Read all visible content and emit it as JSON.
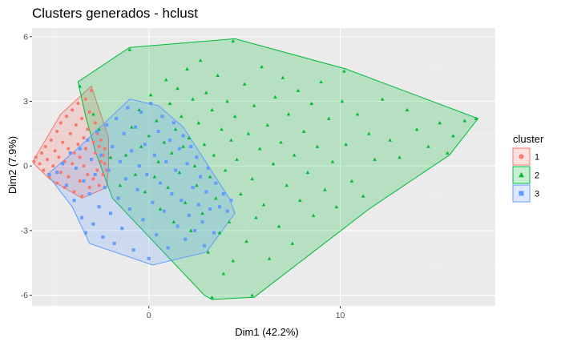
{
  "chart_data": {
    "type": "scatter",
    "title": "Clusters generados - hclust",
    "xlabel": "Dim1 (42.2%)",
    "ylabel": "Dim2 (7.9%)",
    "xlim": [
      -6.1,
      18.1
    ],
    "ylim": [
      -6.5,
      6.4
    ],
    "x_ticks": [
      0,
      10
    ],
    "y_ticks": [
      -6,
      -3,
      0,
      3,
      6
    ],
    "grid": true,
    "legend": {
      "title": "cluster",
      "position": "right",
      "entries": [
        "1",
        "2",
        "3"
      ]
    },
    "colors": {
      "1": "#f8766d",
      "2": "#00ba38",
      "3": "#619cff"
    },
    "series": [
      {
        "name": "1",
        "marker": "circle",
        "hull": [
          [
            -6.0,
            0.3
          ],
          [
            -4.6,
            2.4
          ],
          [
            -3.5,
            3.3
          ],
          [
            -3.0,
            3.7
          ],
          [
            -2.1,
            1.3
          ],
          [
            -2.1,
            0.0
          ],
          [
            -2.2,
            -1.0
          ],
          [
            -3.5,
            -1.5
          ],
          [
            -5.2,
            -0.6
          ],
          [
            -6.0,
            0.1
          ]
        ],
        "points": [
          [
            -6.0,
            0.2
          ],
          [
            -5.9,
            0.4
          ],
          [
            -5.7,
            0.1
          ],
          [
            -5.6,
            0.6
          ],
          [
            -5.5,
            -0.2
          ],
          [
            -5.4,
            0.9
          ],
          [
            -5.3,
            0.3
          ],
          [
            -5.2,
            -0.5
          ],
          [
            -5.1,
            1.2
          ],
          [
            -5.0,
            0.0
          ],
          [
            -4.9,
            0.7
          ],
          [
            -4.8,
            1.6
          ],
          [
            -4.8,
            -0.8
          ],
          [
            -4.7,
            0.4
          ],
          [
            -4.6,
            2.0
          ],
          [
            -4.6,
            -0.3
          ],
          [
            -4.5,
            1.1
          ],
          [
            -4.4,
            0.2
          ],
          [
            -4.4,
            -1.0
          ],
          [
            -4.3,
            2.3
          ],
          [
            -4.2,
            0.8
          ],
          [
            -4.2,
            -0.5
          ],
          [
            -4.1,
            1.5
          ],
          [
            -4.0,
            0.1
          ],
          [
            -4.0,
            2.6
          ],
          [
            -3.9,
            -1.2
          ],
          [
            -3.9,
            0.6
          ],
          [
            -3.8,
            1.9
          ],
          [
            -3.8,
            -0.1
          ],
          [
            -3.7,
            2.9
          ],
          [
            -3.7,
            1.0
          ],
          [
            -3.6,
            -0.7
          ],
          [
            -3.6,
            0.4
          ],
          [
            -3.5,
            2.2
          ],
          [
            -3.5,
            -1.4
          ],
          [
            -3.4,
            1.3
          ],
          [
            -3.4,
            0.0
          ],
          [
            -3.3,
            3.1
          ],
          [
            -3.3,
            0.8
          ],
          [
            -3.2,
            -0.4
          ],
          [
            -3.2,
            1.7
          ],
          [
            -3.1,
            2.5
          ],
          [
            -3.1,
            -1.0
          ],
          [
            -3.0,
            0.3
          ],
          [
            -3.0,
            3.5
          ],
          [
            -2.9,
            1.1
          ],
          [
            -2.9,
            -0.6
          ],
          [
            -2.8,
            2.0
          ],
          [
            -2.8,
            0.6
          ],
          [
            -2.7,
            -0.2
          ],
          [
            -2.7,
            1.5
          ],
          [
            -2.6,
            0.9
          ],
          [
            -2.6,
            -0.9
          ],
          [
            -2.5,
            0.2
          ],
          [
            -2.5,
            1.2
          ],
          [
            -2.4,
            0.5
          ],
          [
            -2.4,
            -0.4
          ],
          [
            -2.3,
            0.8
          ],
          [
            -2.3,
            0.1
          ],
          [
            -2.2,
            -0.2
          ]
        ]
      },
      {
        "name": "2",
        "marker": "triangle",
        "hull": [
          [
            -3.7,
            3.9
          ],
          [
            -1.0,
            5.5
          ],
          [
            4.5,
            5.9
          ],
          [
            10.3,
            4.5
          ],
          [
            17.2,
            2.2
          ],
          [
            15.7,
            0.5
          ],
          [
            11.5,
            -2.0
          ],
          [
            5.5,
            -6.1
          ],
          [
            3.3,
            -6.2
          ],
          [
            2.9,
            -6.0
          ],
          [
            -1.9,
            -1.5
          ],
          [
            -2.8,
            0.7
          ],
          [
            -3.3,
            2.3
          ],
          [
            -3.7,
            3.9
          ]
        ],
        "points": [
          [
            -3.6,
            3.7
          ],
          [
            -1.0,
            5.4
          ],
          [
            4.4,
            5.8
          ],
          [
            10.2,
            4.4
          ],
          [
            17.1,
            2.2
          ],
          [
            15.6,
            0.6
          ],
          [
            5.4,
            -6.0
          ],
          [
            3.3,
            -6.1
          ],
          [
            -1.5,
            -0.9
          ],
          [
            -1.2,
            0.5
          ],
          [
            -0.9,
            1.8
          ],
          [
            -0.7,
            -0.4
          ],
          [
            -0.5,
            2.6
          ],
          [
            -0.4,
            0.9
          ],
          [
            -0.2,
            -1.2
          ],
          [
            0.0,
            1.4
          ],
          [
            0.1,
            3.3
          ],
          [
            0.3,
            -0.5
          ],
          [
            0.4,
            2.1
          ],
          [
            0.5,
            0.2
          ],
          [
            0.6,
            -2.0
          ],
          [
            0.8,
            1.1
          ],
          [
            0.9,
            4.0
          ],
          [
            1.0,
            -1.0
          ],
          [
            1.1,
            2.9
          ],
          [
            1.2,
            0.6
          ],
          [
            1.3,
            -2.6
          ],
          [
            1.4,
            1.7
          ],
          [
            1.5,
            3.6
          ],
          [
            1.6,
            -0.3
          ],
          [
            1.7,
            2.3
          ],
          [
            1.8,
            0.9
          ],
          [
            1.9,
            -1.7
          ],
          [
            2.0,
            4.5
          ],
          [
            2.1,
            1.3
          ],
          [
            2.2,
            -3.0
          ],
          [
            2.3,
            3.1
          ],
          [
            2.4,
            0.0
          ],
          [
            2.5,
            -0.9
          ],
          [
            2.6,
            2.0
          ],
          [
            2.7,
            4.9
          ],
          [
            2.8,
            -2.2
          ],
          [
            2.9,
            1.0
          ],
          [
            3.0,
            3.4
          ],
          [
            3.1,
            -4.0
          ],
          [
            3.2,
            -0.5
          ],
          [
            3.3,
            2.6
          ],
          [
            3.4,
            0.5
          ],
          [
            3.5,
            -1.5
          ],
          [
            3.6,
            4.2
          ],
          [
            3.7,
            -3.1
          ],
          [
            3.8,
            1.7
          ],
          [
            3.9,
            -5.0
          ],
          [
            4.0,
            -0.2
          ],
          [
            4.1,
            3.0
          ],
          [
            4.2,
            -2.6
          ],
          [
            4.3,
            1.2
          ],
          [
            4.4,
            -4.4
          ],
          [
            4.5,
            2.3
          ],
          [
            4.6,
            0.3
          ],
          [
            4.8,
            -1.3
          ],
          [
            5.0,
            3.8
          ],
          [
            5.1,
            -3.5
          ],
          [
            5.2,
            1.5
          ],
          [
            5.4,
            -0.6
          ],
          [
            5.5,
            2.8
          ],
          [
            5.6,
            -2.4
          ],
          [
            5.8,
            0.8
          ],
          [
            5.9,
            4.6
          ],
          [
            6.0,
            -1.8
          ],
          [
            6.2,
            1.9
          ],
          [
            6.3,
            -4.3
          ],
          [
            6.5,
            0.1
          ],
          [
            6.6,
            3.2
          ],
          [
            6.8,
            -2.8
          ],
          [
            6.9,
            1.1
          ],
          [
            7.0,
            4.1
          ],
          [
            7.2,
            -0.9
          ],
          [
            7.3,
            2.4
          ],
          [
            7.5,
            -3.6
          ],
          [
            7.6,
            0.5
          ],
          [
            7.8,
            3.5
          ],
          [
            7.9,
            -1.6
          ],
          [
            8.1,
            1.6
          ],
          [
            8.3,
            -0.3
          ],
          [
            8.5,
            2.9
          ],
          [
            8.6,
            -2.3
          ],
          [
            8.8,
            0.9
          ],
          [
            9.0,
            3.9
          ],
          [
            9.2,
            -1.1
          ],
          [
            9.4,
            2.2
          ],
          [
            9.6,
            0.2
          ],
          [
            9.8,
            -1.9
          ],
          [
            10.1,
            3.0
          ],
          [
            10.3,
            1.0
          ],
          [
            10.6,
            -0.7
          ],
          [
            10.9,
            2.4
          ],
          [
            11.2,
            -1.4
          ],
          [
            11.5,
            1.5
          ],
          [
            11.8,
            0.3
          ],
          [
            12.2,
            3.1
          ],
          [
            12.6,
            1.2
          ],
          [
            13.1,
            0.4
          ],
          [
            13.5,
            2.6
          ],
          [
            14.0,
            1.7
          ],
          [
            14.6,
            0.9
          ],
          [
            15.2,
            2.0
          ],
          [
            15.9,
            1.4
          ],
          [
            16.5,
            2.1
          ],
          [
            -2.9,
            2.4
          ],
          [
            -2.6,
            1.7
          ],
          [
            -2.0,
            0.4
          ]
        ]
      },
      {
        "name": "3",
        "marker": "square",
        "hull": [
          [
            -1.0,
            3.1
          ],
          [
            0.5,
            2.8
          ],
          [
            1.8,
            1.8
          ],
          [
            4.2,
            -1.5
          ],
          [
            4.5,
            -2.2
          ],
          [
            3.0,
            -4.0
          ],
          [
            0.2,
            -4.6
          ],
          [
            -3.1,
            -3.6
          ],
          [
            -4.0,
            -1.9
          ],
          [
            -5.3,
            -0.4
          ],
          [
            -3.6,
            0.9
          ],
          [
            -1.0,
            3.1
          ]
        ],
        "points": [
          [
            -5.2,
            -0.4
          ],
          [
            -4.8,
            -0.3
          ],
          [
            -4.5,
            0.1
          ],
          [
            -4.3,
            -0.9
          ],
          [
            -4.1,
            0.6
          ],
          [
            -3.9,
            -1.6
          ],
          [
            -3.8,
            -0.1
          ],
          [
            -3.6,
            0.8
          ],
          [
            -3.5,
            -2.4
          ],
          [
            -3.4,
            -0.7
          ],
          [
            -3.3,
            -3.1
          ],
          [
            -3.2,
            1.2
          ],
          [
            -3.1,
            -1.3
          ],
          [
            -3.0,
            0.3
          ],
          [
            -2.9,
            -2.7
          ],
          [
            -2.8,
            -0.4
          ],
          [
            -2.7,
            1.6
          ],
          [
            -2.6,
            -1.9
          ],
          [
            -2.5,
            0.5
          ],
          [
            -2.4,
            -3.3
          ],
          [
            -2.3,
            -1.0
          ],
          [
            -2.2,
            1.9
          ],
          [
            -2.1,
            -0.2
          ],
          [
            -2.0,
            -2.2
          ],
          [
            -1.9,
            0.9
          ],
          [
            -1.8,
            -3.6
          ],
          [
            -1.7,
            2.2
          ],
          [
            -1.6,
            -1.5
          ],
          [
            -1.5,
            0.2
          ],
          [
            -1.4,
            -2.9
          ],
          [
            -1.3,
            1.5
          ],
          [
            -1.2,
            -0.6
          ],
          [
            -1.1,
            2.7
          ],
          [
            -1.0,
            -2.0
          ],
          [
            -0.9,
            0.7
          ],
          [
            -0.8,
            -3.9
          ],
          [
            -0.7,
            1.8
          ],
          [
            -0.6,
            -1.1
          ],
          [
            -0.5,
            0.0
          ],
          [
            -0.4,
            2.5
          ],
          [
            -0.3,
            -2.5
          ],
          [
            -0.2,
            1.0
          ],
          [
            -0.1,
            -0.4
          ],
          [
            0.0,
            -4.3
          ],
          [
            0.1,
            2.9
          ],
          [
            0.2,
            -1.7
          ],
          [
            0.3,
            0.5
          ],
          [
            0.4,
            -3.2
          ],
          [
            0.5,
            1.6
          ],
          [
            0.6,
            -0.8
          ],
          [
            0.7,
            2.3
          ],
          [
            0.8,
            -2.1
          ],
          [
            0.9,
            0.2
          ],
          [
            1.0,
            -3.8
          ],
          [
            1.1,
            1.2
          ],
          [
            1.2,
            -1.3
          ],
          [
            1.3,
            2.0
          ],
          [
            1.4,
            -0.2
          ],
          [
            1.5,
            -2.8
          ],
          [
            1.6,
            0.8
          ],
          [
            1.7,
            -1.6
          ],
          [
            1.8,
            1.4
          ],
          [
            1.9,
            -3.4
          ],
          [
            2.0,
            0.1
          ],
          [
            2.1,
            -2.3
          ],
          [
            2.2,
            0.9
          ],
          [
            2.3,
            -1.0
          ],
          [
            2.4,
            -3.0
          ],
          [
            2.5,
            0.4
          ],
          [
            2.6,
            -1.8
          ],
          [
            2.7,
            -0.5
          ],
          [
            2.8,
            -2.6
          ],
          [
            2.9,
            -3.7
          ],
          [
            3.0,
            -1.2
          ],
          [
            3.1,
            -0.1
          ],
          [
            3.2,
            -2.0
          ],
          [
            3.4,
            -3.1
          ],
          [
            3.5,
            -0.8
          ],
          [
            3.7,
            -1.9
          ],
          [
            3.9,
            -1.3
          ],
          [
            4.1,
            -2.1
          ],
          [
            4.3,
            -1.6
          ]
        ]
      }
    ]
  }
}
